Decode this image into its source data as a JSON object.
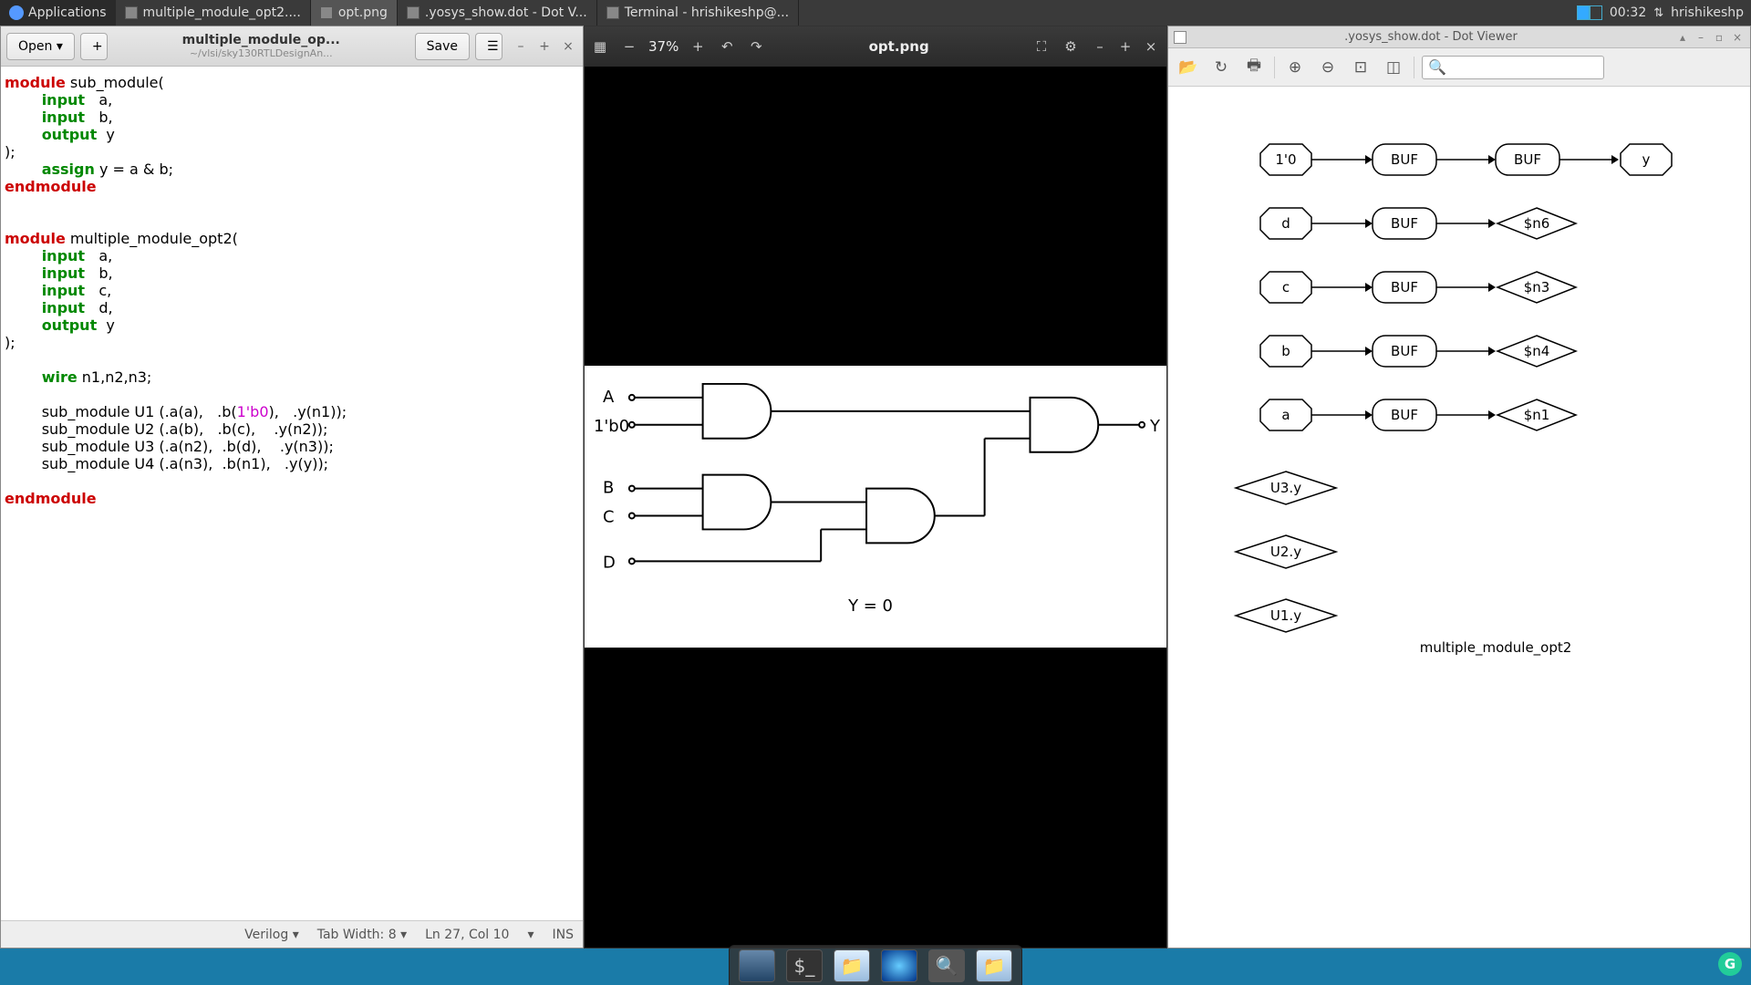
{
  "taskbar": {
    "apps_label": "Applications",
    "tasks": [
      {
        "label": "multiple_module_opt2....",
        "active": false
      },
      {
        "label": "opt.png",
        "active": true
      },
      {
        "label": ".yosys_show.dot - Dot V...",
        "active": false
      },
      {
        "label": "Terminal - hrishikeshp@...",
        "active": false
      }
    ],
    "clock": "00:32",
    "user": "hrishikeshp"
  },
  "editor": {
    "open_label": "Open ▾",
    "save_label": "Save",
    "tab_title": "multiple_module_op...",
    "tab_subtitle": "~/vlsi/sky130RTLDesignAn...",
    "status": {
      "lang": "Verilog ▾",
      "tabwidth": "Tab Width: 8 ▾",
      "pos": "Ln 27, Col 10",
      "ins": "INS"
    },
    "code_tokens": [
      [
        "kw-red",
        "module"
      ],
      [
        "",
        " sub_module(\n"
      ],
      [
        "",
        "        "
      ],
      [
        "kw-green",
        "input"
      ],
      [
        "",
        "   a,\n"
      ],
      [
        "",
        "        "
      ],
      [
        "kw-green",
        "input"
      ],
      [
        "",
        "   b,\n"
      ],
      [
        "",
        "        "
      ],
      [
        "kw-green",
        "output"
      ],
      [
        "",
        "  y\n"
      ],
      [
        "",
        ");\n"
      ],
      [
        "",
        "        "
      ],
      [
        "kw-green",
        "assign"
      ],
      [
        "",
        " y = a & b;\n"
      ],
      [
        "kw-red",
        "endmodule"
      ],
      [
        "",
        "\n\n\n"
      ],
      [
        "kw-red",
        "module"
      ],
      [
        "",
        " multiple_module_opt2(\n"
      ],
      [
        "",
        "        "
      ],
      [
        "kw-green",
        "input"
      ],
      [
        "",
        "   a,\n"
      ],
      [
        "",
        "        "
      ],
      [
        "kw-green",
        "input"
      ],
      [
        "",
        "   b,\n"
      ],
      [
        "",
        "        "
      ],
      [
        "kw-green",
        "input"
      ],
      [
        "",
        "   c,\n"
      ],
      [
        "",
        "        "
      ],
      [
        "kw-green",
        "input"
      ],
      [
        "",
        "   d,\n"
      ],
      [
        "",
        "        "
      ],
      [
        "kw-green",
        "output"
      ],
      [
        "",
        "  y\n"
      ],
      [
        "",
        ");\n\n"
      ],
      [
        "",
        "        "
      ],
      [
        "kw-green",
        "wire"
      ],
      [
        "",
        " n1,n2,n3;\n\n"
      ],
      [
        "",
        "        sub_module U1 (.a(a),   .b("
      ],
      [
        "lit",
        "1'b0"
      ],
      [
        "",
        "),   .y(n1));\n"
      ],
      [
        "",
        "        sub_module U2 (.a(b),   .b(c),    .y(n2));\n"
      ],
      [
        "",
        "        sub_module U3 (.a(n2),  .b(d),    .y(n3));\n"
      ],
      [
        "",
        "        sub_module U4 (.a(n3),  .b(n1),   .y(y));\n\n"
      ],
      [
        "kw-red",
        "endmodule"
      ],
      [
        "",
        "\n"
      ]
    ]
  },
  "imgview": {
    "zoom": "37%",
    "title": "opt.png",
    "circuit": {
      "labels": {
        "A": "A",
        "B": "B",
        "C": "C",
        "D": "D",
        "zero": "1'b0",
        "Y": "Y",
        "eqn": "Y = 0"
      },
      "bg": "#ffffff",
      "stroke": "#000000",
      "stroke_w": 2,
      "font_size": 18
    }
  },
  "dotview": {
    "title": ".yosys_show.dot - Dot Viewer",
    "graph": {
      "rows": [
        {
          "in": "1'0",
          "mid": "BUF",
          "mid2": "BUF",
          "out": "y",
          "out_shape": "oct"
        },
        {
          "in": "d",
          "mid": "BUF",
          "out": "$n6",
          "out_shape": "dia"
        },
        {
          "in": "c",
          "mid": "BUF",
          "out": "$n3",
          "out_shape": "dia"
        },
        {
          "in": "b",
          "mid": "BUF",
          "out": "$n4",
          "out_shape": "dia"
        },
        {
          "in": "a",
          "mid": "BUF",
          "out": "$n1",
          "out_shape": "dia"
        }
      ],
      "floats": [
        "U3.y",
        "U2.y",
        "U1.y"
      ],
      "caption": "multiple_module_opt2",
      "stroke": "#000000",
      "font_size": 15
    }
  }
}
